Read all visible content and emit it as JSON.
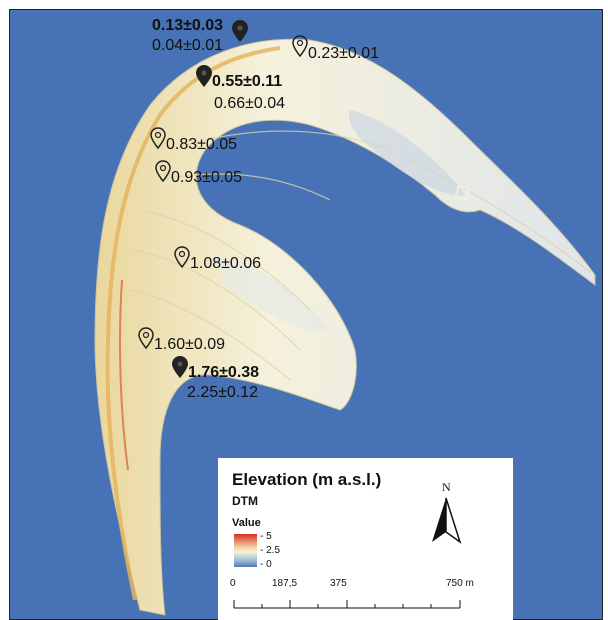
{
  "markers": [
    {
      "id": "m1",
      "primary": "0.13±0.03",
      "secondary": "0.04±0.01",
      "bold": true,
      "filled": true
    },
    {
      "id": "m2",
      "primary": "0.23±0.01",
      "secondary": "",
      "bold": false,
      "filled": false
    },
    {
      "id": "m3",
      "primary": "0.55±0.11",
      "secondary": "0.66±0.04",
      "bold": true,
      "filled": true
    },
    {
      "id": "m4",
      "primary": "0.83±0.05",
      "secondary": "",
      "bold": false,
      "filled": false
    },
    {
      "id": "m5",
      "primary": "0.93±0.05",
      "secondary": "",
      "bold": false,
      "filled": false
    },
    {
      "id": "m6",
      "primary": "1.08±0.06",
      "secondary": "",
      "bold": false,
      "filled": false
    },
    {
      "id": "m7",
      "primary": "1.60±0.09",
      "secondary": "",
      "bold": false,
      "filled": false
    },
    {
      "id": "m8",
      "primary": "1.76±0.38",
      "secondary": "2.25±0.12",
      "bold": true,
      "filled": true
    }
  ],
  "legend": {
    "title": "Elevation (m a.s.l.)",
    "layer": "DTM",
    "value_label": "Value",
    "ramp_high": "5",
    "ramp_mid": "2.5",
    "ramp_low": "0",
    "ramp_colors": [
      "#d7301f",
      "#f6f1d9",
      "#4f78b4"
    ],
    "north": "N",
    "scale_labels": [
      "0",
      "187,5",
      "375",
      "750 m"
    ]
  },
  "colors": {
    "water": "#4772b6",
    "land": "#f3efd2",
    "ridge": "#e8c57a",
    "ridge_high": "#d8663a"
  }
}
